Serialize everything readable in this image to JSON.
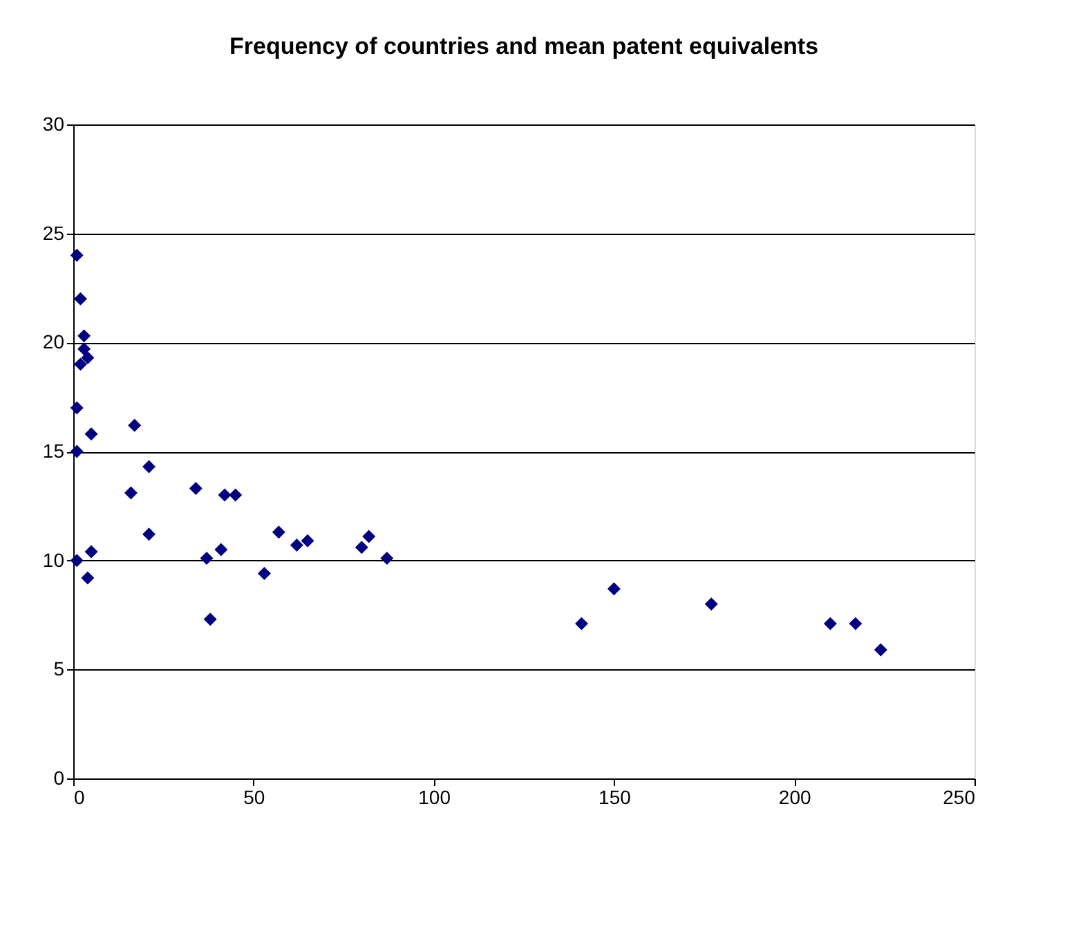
{
  "chart_data": {
    "type": "scatter",
    "title": "Frequency of countries and mean patent equivalents",
    "x": [
      1,
      2,
      3,
      3,
      4,
      2,
      1,
      5,
      1,
      1,
      5,
      4,
      17,
      16,
      21,
      21,
      34,
      37,
      38,
      41,
      42,
      45,
      53,
      57,
      62,
      65,
      80,
      82,
      87,
      141,
      150,
      177,
      210,
      217,
      224
    ],
    "series": [
      {
        "color": "#000080",
        "values": [
          24,
          22,
          20.3,
          19.7,
          19.3,
          19,
          17,
          15.8,
          15,
          10,
          10.4,
          9.2,
          16.2,
          13.1,
          14.3,
          11.2,
          13.3,
          10.1,
          7.3,
          10.5,
          13,
          13,
          9.4,
          11.3,
          10.7,
          10.9,
          10.6,
          11.1,
          10.1,
          7.1,
          8.7,
          8,
          7.1,
          7.1,
          5.9
        ]
      }
    ],
    "xlim": [
      0,
      250
    ],
    "xticks": [
      0,
      50,
      100,
      150,
      200,
      250
    ],
    "ylim": [
      0,
      30
    ],
    "yticks": [
      0,
      5,
      10,
      15,
      20,
      25,
      30
    ],
    "grid": "y",
    "marker": "diamond",
    "legend": false
  }
}
